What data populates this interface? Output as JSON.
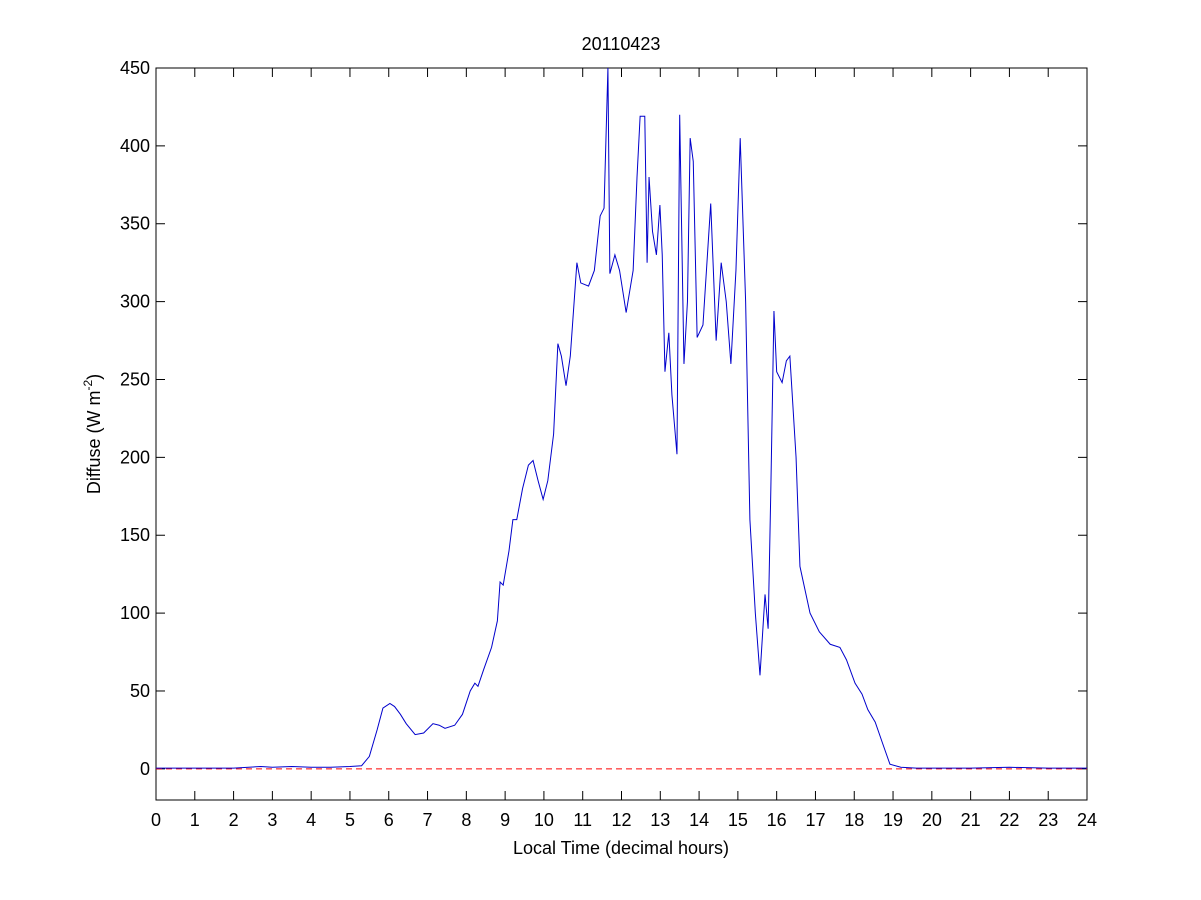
{
  "chart_data": {
    "type": "line",
    "title": "20110423",
    "xlabel": "Local Time (decimal hours)",
    "ylabel": {
      "text": "Diffuse (W m",
      "superscript": "-2",
      "suffix": ")"
    },
    "xlim": [
      0,
      24
    ],
    "xticks": [
      0,
      1,
      2,
      3,
      4,
      5,
      6,
      7,
      8,
      9,
      10,
      11,
      12,
      13,
      14,
      15,
      16,
      17,
      18,
      19,
      20,
      21,
      22,
      23,
      24
    ],
    "ylim": [
      -20,
      450
    ],
    "yticks": [
      0,
      50,
      100,
      150,
      200,
      250,
      300,
      350,
      400,
      450
    ],
    "grid": false,
    "reference_lines": [
      {
        "y": 0,
        "color": "#ff0000",
        "style": "dashed"
      }
    ],
    "series": [
      {
        "color": "#0000cc",
        "x": [
          0,
          1,
          2,
          2.7,
          3,
          3.5,
          4,
          4.5,
          5,
          5.3,
          5.5,
          5.7,
          5.85,
          6.03,
          6.15,
          6.3,
          6.45,
          6.68,
          6.9,
          7.14,
          7.3,
          7.45,
          7.7,
          7.9,
          8.1,
          8.22,
          8.3,
          8.45,
          8.65,
          8.8,
          8.87,
          8.95,
          9.1,
          9.2,
          9.3,
          9.45,
          9.6,
          9.72,
          9.85,
          9.98,
          10.1,
          10.25,
          10.36,
          10.45,
          10.57,
          10.68,
          10.85,
          10.95,
          11.15,
          11.3,
          11.45,
          11.55,
          11.65,
          11.7,
          11.83,
          11.95,
          12.12,
          12.3,
          12.4,
          12.48,
          12.6,
          12.66,
          12.71,
          12.8,
          12.9,
          12.99,
          13.05,
          13.12,
          13.22,
          13.3,
          13.43,
          13.5,
          13.61,
          13.7,
          13.77,
          13.85,
          13.95,
          14.1,
          14.3,
          14.44,
          14.57,
          14.7,
          14.82,
          14.95,
          15.06,
          15.2,
          15.31,
          15.45,
          15.57,
          15.7,
          15.78,
          15.85,
          15.93,
          16.0,
          16.14,
          16.25,
          16.34,
          16.5,
          16.6,
          16.86,
          17.1,
          17.38,
          17.63,
          17.8,
          18.02,
          18.2,
          18.35,
          18.54,
          18.75,
          18.92,
          19.2,
          19.6,
          20,
          21,
          22,
          23,
          24
        ],
        "values": [
          0.5,
          0.5,
          0.5,
          1.5,
          1,
          1.5,
          1,
          1,
          1.5,
          2,
          8,
          25,
          39,
          42,
          40,
          35,
          29,
          22,
          23,
          29,
          28,
          26,
          28,
          35,
          50,
          55,
          53,
          64,
          78,
          95,
          120,
          118,
          140,
          160,
          160,
          180,
          195,
          198,
          185,
          173,
          185,
          215,
          273,
          265,
          246,
          265,
          325,
          312,
          310,
          320,
          355,
          360,
          450,
          318,
          330,
          320,
          293,
          320,
          380,
          419,
          419,
          325,
          380,
          345,
          330,
          362,
          330,
          255,
          280,
          240,
          202,
          420,
          260,
          300,
          405,
          390,
          277,
          285,
          363,
          275,
          325,
          300,
          260,
          320,
          405,
          300,
          160,
          100,
          60,
          112,
          90,
          180,
          294,
          255,
          248,
          262,
          265,
          200,
          130,
          100,
          88,
          80,
          78,
          70,
          55,
          48,
          38,
          30,
          15,
          3,
          1,
          0.5,
          0.5,
          0.5,
          1,
          0.5,
          0.5
        ]
      }
    ]
  }
}
